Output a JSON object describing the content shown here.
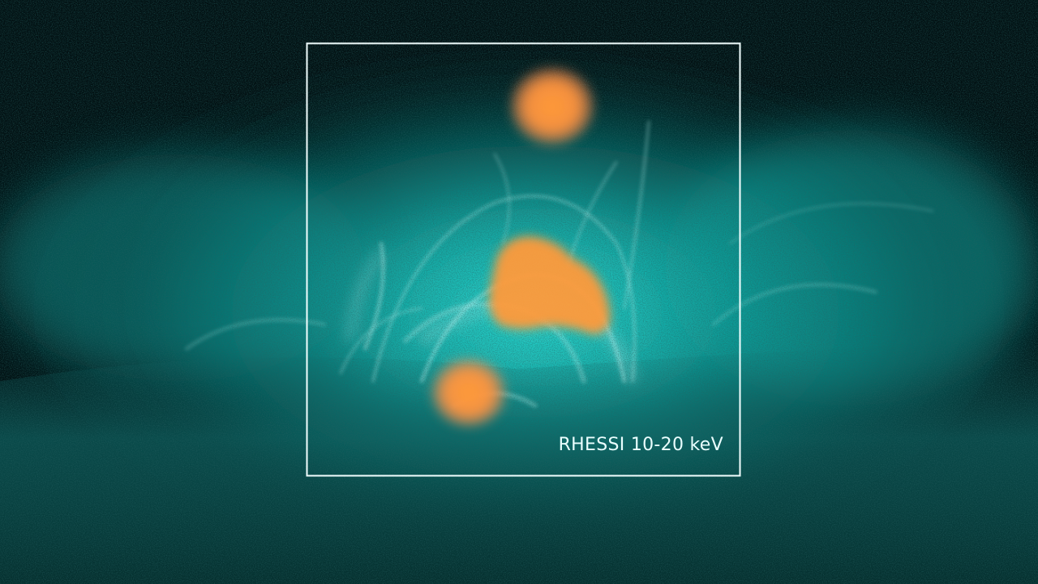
{
  "image": {
    "caption": "RHESSI 10-20 keV",
    "palette": {
      "background": "#021012",
      "corona_glow": "#19c9c4",
      "loop_highlight": "#c8fffb",
      "xray_source": "#ff9a40",
      "frame": "#f2ffff"
    },
    "icons": {
      "frame": "rectangle-outline",
      "xray_sources": "orange-blob"
    }
  }
}
